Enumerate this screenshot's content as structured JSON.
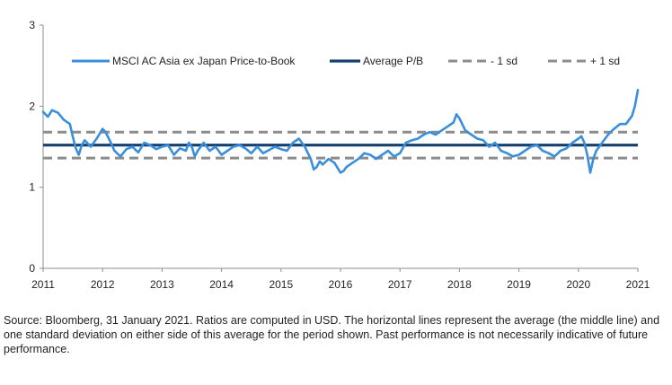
{
  "chart_data": {
    "type": "line",
    "title": "",
    "xlabel": "",
    "ylabel": "",
    "xlim": [
      2011,
      2021
    ],
    "ylim": [
      0,
      3
    ],
    "x_ticks": [
      "2011",
      "2012",
      "2013",
      "2014",
      "2015",
      "2016",
      "2017",
      "2018",
      "2019",
      "2020",
      "2021"
    ],
    "y_ticks": [
      "0",
      "1",
      "2",
      "3"
    ],
    "grid": false,
    "legend_position": "top",
    "colors": {
      "series": "#3a8fdc",
      "average": "#173f6d",
      "sd_band": "#8c8c8c",
      "axis": "#8c8c8c"
    },
    "series": [
      {
        "name": "MSCI AC Asia ex Japan Price-to-Book",
        "style": "line",
        "x": [
          2011.0,
          2011.08,
          2011.15,
          2011.25,
          2011.35,
          2011.45,
          2011.5,
          2011.55,
          2011.6,
          2011.65,
          2011.7,
          2011.8,
          2011.9,
          2012.0,
          2012.05,
          2012.12,
          2012.2,
          2012.3,
          2012.4,
          2012.5,
          2012.6,
          2012.7,
          2012.8,
          2012.9,
          2013.0,
          2013.1,
          2013.2,
          2013.3,
          2013.4,
          2013.45,
          2013.5,
          2013.55,
          2013.6,
          2013.7,
          2013.8,
          2013.9,
          2014.0,
          2014.1,
          2014.2,
          2014.3,
          2014.4,
          2014.5,
          2014.6,
          2014.7,
          2014.8,
          2014.9,
          2015.0,
          2015.1,
          2015.2,
          2015.3,
          2015.4,
          2015.5,
          2015.55,
          2015.6,
          2015.65,
          2015.7,
          2015.8,
          2015.9,
          2016.0,
          2016.05,
          2016.1,
          2016.2,
          2016.3,
          2016.4,
          2016.5,
          2016.6,
          2016.7,
          2016.8,
          2016.9,
          2017.0,
          2017.1,
          2017.2,
          2017.3,
          2017.4,
          2017.5,
          2017.6,
          2017.7,
          2017.8,
          2017.9,
          2017.95,
          2018.0,
          2018.1,
          2018.2,
          2018.3,
          2018.4,
          2018.5,
          2018.6,
          2018.7,
          2018.8,
          2018.9,
          2019.0,
          2019.1,
          2019.2,
          2019.3,
          2019.4,
          2019.5,
          2019.6,
          2019.7,
          2019.8,
          2019.9,
          2020.0,
          2020.05,
          2020.1,
          2020.15,
          2020.2,
          2020.25,
          2020.3,
          2020.4,
          2020.5,
          2020.6,
          2020.7,
          2020.8,
          2020.9,
          2020.95,
          2021.0
        ],
        "values": [
          1.93,
          1.87,
          1.95,
          1.92,
          1.83,
          1.78,
          1.62,
          1.48,
          1.4,
          1.52,
          1.58,
          1.5,
          1.6,
          1.72,
          1.68,
          1.58,
          1.45,
          1.38,
          1.47,
          1.5,
          1.43,
          1.55,
          1.52,
          1.47,
          1.5,
          1.52,
          1.4,
          1.48,
          1.45,
          1.55,
          1.5,
          1.38,
          1.45,
          1.55,
          1.45,
          1.5,
          1.4,
          1.45,
          1.5,
          1.52,
          1.48,
          1.42,
          1.5,
          1.42,
          1.46,
          1.5,
          1.47,
          1.45,
          1.55,
          1.6,
          1.5,
          1.35,
          1.22,
          1.25,
          1.32,
          1.28,
          1.35,
          1.3,
          1.18,
          1.2,
          1.25,
          1.3,
          1.35,
          1.42,
          1.4,
          1.35,
          1.4,
          1.45,
          1.38,
          1.42,
          1.55,
          1.58,
          1.6,
          1.65,
          1.68,
          1.65,
          1.7,
          1.75,
          1.8,
          1.9,
          1.85,
          1.7,
          1.65,
          1.6,
          1.58,
          1.5,
          1.55,
          1.45,
          1.42,
          1.38,
          1.4,
          1.45,
          1.5,
          1.52,
          1.45,
          1.42,
          1.38,
          1.45,
          1.48,
          1.55,
          1.6,
          1.63,
          1.55,
          1.4,
          1.18,
          1.35,
          1.45,
          1.55,
          1.65,
          1.72,
          1.78,
          1.78,
          1.88,
          2.0,
          2.2
        ]
      },
      {
        "name": "Average P/B",
        "style": "solid",
        "x": [
          2011,
          2021
        ],
        "values": [
          1.52,
          1.52
        ]
      },
      {
        "name": "- 1 sd",
        "style": "dashed",
        "x": [
          2011,
          2021
        ],
        "values": [
          1.36,
          1.36
        ]
      },
      {
        "name": "+ 1 sd",
        "style": "dashed",
        "x": [
          2011,
          2021
        ],
        "values": [
          1.68,
          1.68
        ]
      }
    ]
  },
  "footnote": "Source: Bloomberg, 31 January 2021. Ratios are computed in USD. The horizontal lines represent the average (the middle line) and one standard deviation on either side of this average for the period shown. Past performance is not necessarily indicative of future performance."
}
